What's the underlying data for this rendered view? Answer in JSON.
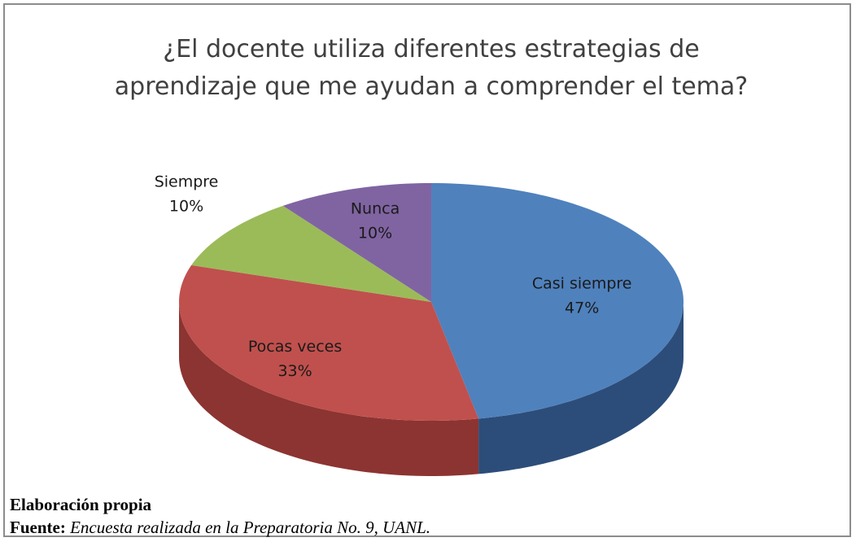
{
  "chart_data": {
    "type": "pie",
    "title": "¿El docente utiliza diferentes estrategias de aprendizaje que me ayudan a comprender el tema?",
    "categories": [
      "Casi siempre",
      "Pocas veces",
      "Siempre",
      "Nunca"
    ],
    "values": [
      47,
      33,
      10,
      10
    ],
    "value_labels": [
      "47%",
      "33%",
      "10%",
      "10%"
    ],
    "colors": [
      "#4f81bd",
      "#c0504d",
      "#9bbb59",
      "#8064a2"
    ],
    "side_colors": [
      "#2c4d7a",
      "#8c3431",
      "#6a8a36",
      "#5a4676"
    ],
    "note": "Elaboración propia",
    "source_label": "Fuente:",
    "source": "Encuesta realizada en la Preparatoria No. 9, UANL."
  }
}
